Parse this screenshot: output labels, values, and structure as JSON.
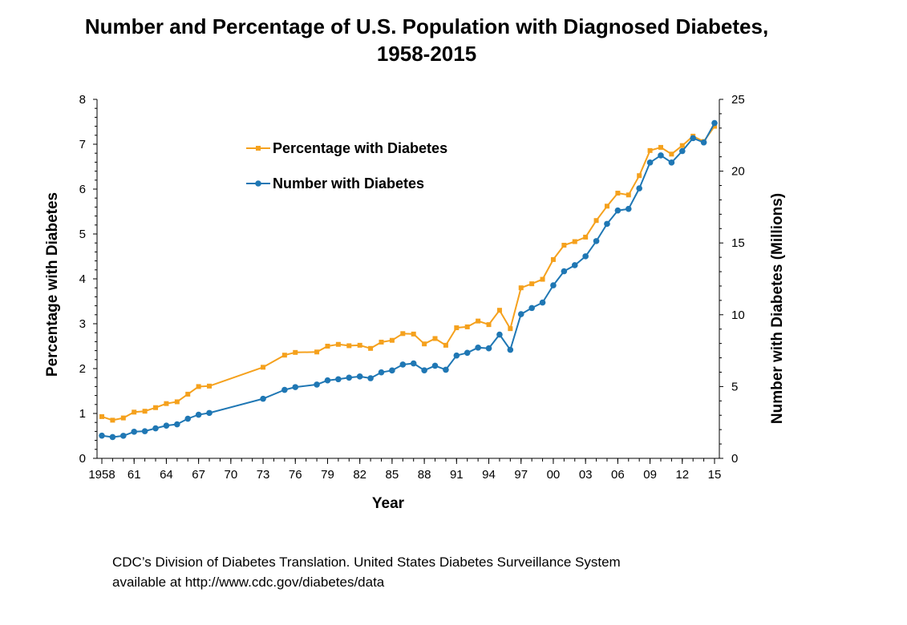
{
  "chart_data": {
    "type": "line",
    "title_line1": "Number and Percentage of U.S. Population with Diagnosed Diabetes,",
    "title_line2": "1958-2015",
    "xlabel": "Year",
    "ylabel_left": "Percentage with Diabetes",
    "ylabel_right": "Number with Diabetes (Millions)",
    "ylim_left": [
      0,
      8
    ],
    "ylim_right": [
      0,
      25
    ],
    "yticks_left": [
      "0",
      "1",
      "2",
      "3",
      "4",
      "5",
      "6",
      "7",
      "8"
    ],
    "yticks_right": [
      "0",
      "5",
      "10",
      "15",
      "20",
      "25"
    ],
    "xlim": [
      1958,
      2015
    ],
    "xtick_labels": [
      {
        "year": 1958,
        "label": "1958"
      },
      {
        "year": 1961,
        "label": "61"
      },
      {
        "year": 1964,
        "label": "64"
      },
      {
        "year": 1967,
        "label": "67"
      },
      {
        "year": 1970,
        "label": "70"
      },
      {
        "year": 1973,
        "label": "73"
      },
      {
        "year": 1976,
        "label": "76"
      },
      {
        "year": 1979,
        "label": "79"
      },
      {
        "year": 1982,
        "label": "82"
      },
      {
        "year": 1985,
        "label": "85"
      },
      {
        "year": 1988,
        "label": "88"
      },
      {
        "year": 1991,
        "label": "91"
      },
      {
        "year": 1994,
        "label": "94"
      },
      {
        "year": 1997,
        "label": "97"
      },
      {
        "year": 2000,
        "label": "00"
      },
      {
        "year": 2003,
        "label": "03"
      },
      {
        "year": 2006,
        "label": "06"
      },
      {
        "year": 2009,
        "label": "09"
      },
      {
        "year": 2012,
        "label": "12"
      },
      {
        "year": 2015,
        "label": "15"
      }
    ],
    "legend_placement": "top-left inside plot",
    "series": [
      {
        "name": "Percentage with Diabetes",
        "axis": "left",
        "color": "#F5A11D",
        "marker": "square",
        "x": [
          1958,
          1959,
          1960,
          1961,
          1962,
          1963,
          1964,
          1965,
          1966,
          1967,
          1968,
          1973,
          1975,
          1976,
          1978,
          1979,
          1980,
          1981,
          1982,
          1983,
          1984,
          1985,
          1986,
          1987,
          1988,
          1989,
          1990,
          1991,
          1992,
          1993,
          1994,
          1995,
          1996,
          1997,
          1998,
          1999,
          2000,
          2001,
          2002,
          2003,
          2004,
          2005,
          2006,
          2007,
          2008,
          2009,
          2010,
          2011,
          2012,
          2013,
          2014,
          2015
        ],
        "y": [
          0.93,
          0.85,
          0.9,
          1.03,
          1.05,
          1.13,
          1.22,
          1.26,
          1.43,
          1.6,
          1.61,
          2.03,
          2.3,
          2.36,
          2.37,
          2.5,
          2.54,
          2.51,
          2.52,
          2.45,
          2.59,
          2.63,
          2.78,
          2.77,
          2.55,
          2.67,
          2.52,
          2.91,
          2.93,
          3.06,
          2.98,
          3.3,
          2.89,
          3.8,
          3.89,
          3.99,
          4.43,
          4.75,
          4.83,
          4.93,
          5.3,
          5.62,
          5.91,
          5.87,
          6.3,
          6.86,
          6.93,
          6.78,
          6.97,
          7.18,
          7.06,
          7.4
        ]
      },
      {
        "name": "Number with Diabetes",
        "axis": "right",
        "color": "#1F77B4",
        "marker": "circle",
        "x": [
          1958,
          1959,
          1960,
          1961,
          1962,
          1963,
          1964,
          1965,
          1966,
          1967,
          1968,
          1973,
          1975,
          1976,
          1978,
          1979,
          1980,
          1981,
          1982,
          1983,
          1984,
          1985,
          1986,
          1987,
          1988,
          1989,
          1990,
          1991,
          1992,
          1993,
          1994,
          1995,
          1996,
          1997,
          1998,
          1999,
          2000,
          2001,
          2002,
          2003,
          2004,
          2005,
          2006,
          2007,
          2008,
          2009,
          2010,
          2011,
          2012,
          2013,
          2014,
          2015
        ],
        "y": [
          1.58,
          1.48,
          1.57,
          1.85,
          1.89,
          2.09,
          2.28,
          2.37,
          2.76,
          3.04,
          3.16,
          4.15,
          4.77,
          4.96,
          5.14,
          5.43,
          5.51,
          5.62,
          5.7,
          5.58,
          5.99,
          6.12,
          6.53,
          6.61,
          6.13,
          6.45,
          6.17,
          7.16,
          7.35,
          7.71,
          7.66,
          8.62,
          7.56,
          10.04,
          10.47,
          10.85,
          12.05,
          13.03,
          13.45,
          14.07,
          15.13,
          16.33,
          17.26,
          17.37,
          18.8,
          20.6,
          21.1,
          20.6,
          21.4,
          22.3,
          22.0,
          23.35
        ]
      }
    ]
  },
  "source": {
    "line1": "CDC’s Division of Diabetes Translation. United States Diabetes Surveillance System",
    "line2": "available at http://www.cdc.gov/diabetes/data"
  }
}
